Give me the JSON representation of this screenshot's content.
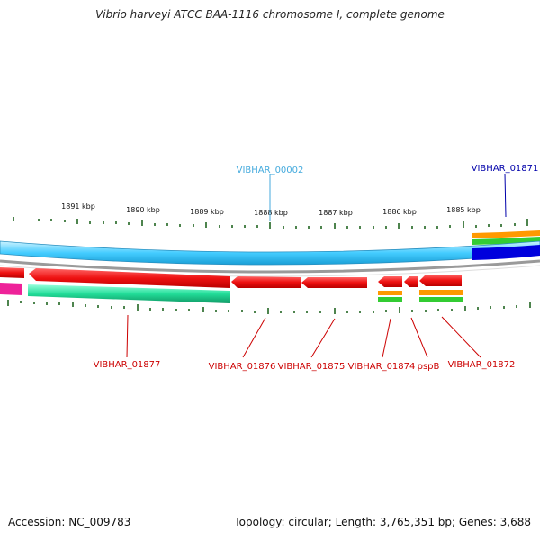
{
  "title": "Vibrio harveyi ATCC BAA-1116 chromosome I, complete genome",
  "footer": {
    "accession": "Accession: NC_009783",
    "info": "Topology: circular; Length: 3,765,351 bp; Genes: 3,688"
  },
  "scale_labels": [
    "1891 kbp",
    "1890 kbp",
    "1889 kbp",
    "1888 kbp",
    "1887 kbp",
    "1886 kbp",
    "1885 kbp"
  ],
  "gene_labels": {
    "vibhar_00002": "VIBHAR_00002",
    "vibhar_01871": "VIBHAR_01871",
    "vibhar_01877": "VIBHAR_01877",
    "vibhar_01876": "VIBHAR_01876",
    "vibhar_01875": "VIBHAR_01875",
    "vibhar_01874": "VIBHAR_01874",
    "pspb": "pspB",
    "vibhar_01872": "VIBHAR_01872"
  },
  "colors": {
    "cds_reverse": "#ee1111",
    "cds_forward_dark": "#0000dd",
    "contig_light_blue": "#44ccff",
    "label_blue": "#44aadd",
    "label_dark_blue": "#0000aa",
    "label_red": "#cc0000",
    "orange": "#ff9900",
    "green": "#33cc33",
    "aqua_green": "#22dd99",
    "magenta": "#ee2299",
    "tick": "#226622"
  }
}
